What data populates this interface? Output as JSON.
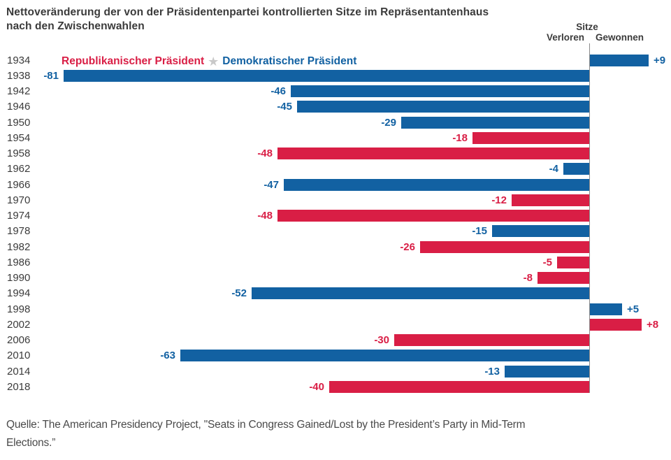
{
  "title": {
    "line1": "Nettoveränderung der von der Präsidentenpartei kontrollierten Sitze im Repräsentantenhaus",
    "line2": "nach den Zwischenwahlen"
  },
  "axis": {
    "header": "Sitze",
    "lost_label": "Verloren",
    "gained_label": "Gewonnen"
  },
  "legend": {
    "republican": "Republikanischer Präsident",
    "democratic": "Demokratischer Präsident",
    "star_icon": "★"
  },
  "colors": {
    "republican": "#D91E45",
    "democratic": "#1261A2",
    "star": "#C9C9C9",
    "axis_line": "#8A8A8A",
    "text": "#3B3B3B"
  },
  "chart_data": {
    "type": "bar",
    "orientation": "horizontal",
    "title": "Nettoveränderung der von der Präsidentenpartei kontrollierten Sitze im Repräsentantenhaus nach den Zwischenwahlen",
    "axis_header": "Sitze",
    "axis_left": "Verloren",
    "axis_right": "Gewonnen",
    "legend": [
      "Republikanischer Präsident",
      "Demokratischer Präsident"
    ],
    "categories": [
      1934,
      1938,
      1942,
      1946,
      1950,
      1954,
      1958,
      1962,
      1966,
      1970,
      1974,
      1978,
      1982,
      1986,
      1990,
      1994,
      1998,
      2002,
      2006,
      2010,
      2014,
      2018
    ],
    "values": [
      9,
      -81,
      -46,
      -45,
      -29,
      -18,
      -48,
      -4,
      -47,
      -12,
      -48,
      -15,
      -26,
      -5,
      -8,
      -52,
      5,
      8,
      -30,
      -63,
      -13,
      -40
    ],
    "value_labels": [
      "+9",
      "-81",
      "-46",
      "-45",
      "-29",
      "-18",
      "-48",
      "-4",
      "-47",
      "-12",
      "-48",
      "-15",
      "-26",
      "-5",
      "-8",
      "-52",
      "+5",
      "+8",
      "-30",
      "-63",
      "-13",
      "-40"
    ],
    "party": [
      "D",
      "D",
      "D",
      "D",
      "D",
      "R",
      "R",
      "D",
      "D",
      "R",
      "R",
      "D",
      "R",
      "R",
      "R",
      "D",
      "D",
      "R",
      "R",
      "D",
      "D",
      "R"
    ],
    "xlim": [
      -85,
      12
    ],
    "grid": false,
    "legend_position": "top-inside"
  },
  "source": {
    "line1": "Quelle: The American Presidency Project, \"Seats in Congress Gained/Lost by the President’s Party in Mid-Term",
    "line2": "Elections.”"
  }
}
